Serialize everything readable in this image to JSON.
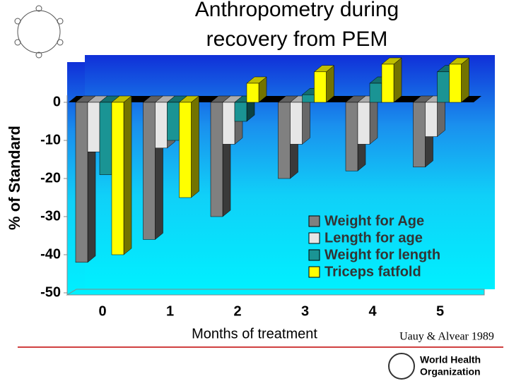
{
  "title_lines": [
    "Anthropometry during",
    "recovery from PEM"
  ],
  "source": "Uauy & Alvear 1989",
  "logo_text": [
    "World Health",
    "Organization"
  ],
  "chart_data": {
    "type": "bar",
    "ylabel": "% of Standard",
    "xlabel": "Months of treatment",
    "categories": [
      "0",
      "1",
      "2",
      "3",
      "4",
      "5"
    ],
    "series": [
      {
        "name": "Weight for Age",
        "color": "#808080",
        "values": [
          -42,
          -36,
          -30,
          -20,
          -18,
          -17
        ]
      },
      {
        "name": "Length for age",
        "color": "#e6e6e6",
        "values": [
          -13,
          -12,
          -11,
          -11,
          -11,
          -9
        ]
      },
      {
        "name": "Weight for length",
        "color": "#1a9494",
        "values": [
          -19,
          -10,
          -5,
          2,
          5,
          8
        ]
      },
      {
        "name": "Triceps fatfold",
        "color": "#ffff00",
        "values": [
          -40,
          -25,
          5,
          8,
          10,
          10
        ]
      }
    ],
    "ylim": [
      -50,
      10
    ],
    "yticks": [
      -50,
      -40,
      -30,
      -20,
      -10,
      0
    ],
    "grid": false,
    "legend": "lower right"
  }
}
